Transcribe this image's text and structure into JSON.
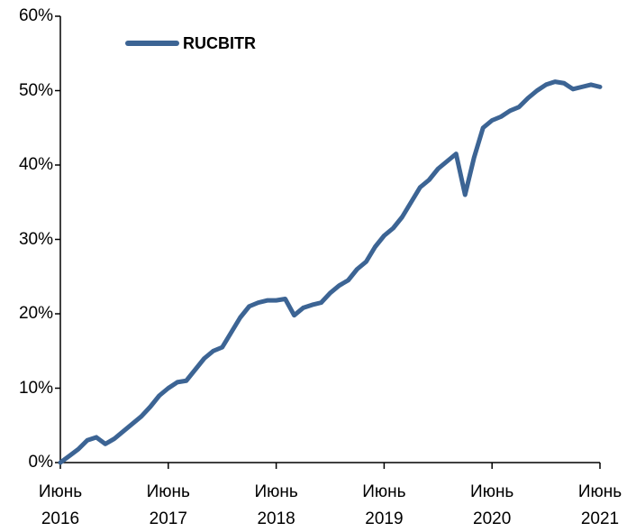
{
  "chart_data": {
    "type": "line",
    "x": [
      "2016-06",
      "2016-07",
      "2016-08",
      "2016-09",
      "2016-10",
      "2016-11",
      "2016-12",
      "2017-01",
      "2017-02",
      "2017-03",
      "2017-04",
      "2017-05",
      "2017-06",
      "2017-07",
      "2017-08",
      "2017-09",
      "2017-10",
      "2017-11",
      "2017-12",
      "2018-01",
      "2018-02",
      "2018-03",
      "2018-04",
      "2018-05",
      "2018-06",
      "2018-07",
      "2018-08",
      "2018-09",
      "2018-10",
      "2018-11",
      "2018-12",
      "2019-01",
      "2019-02",
      "2019-03",
      "2019-04",
      "2019-05",
      "2019-06",
      "2019-07",
      "2019-08",
      "2019-09",
      "2019-10",
      "2019-11",
      "2019-12",
      "2020-01",
      "2020-02",
      "2020-03",
      "2020-04",
      "2020-05",
      "2020-06",
      "2020-07",
      "2020-08",
      "2020-09",
      "2020-10",
      "2020-11",
      "2020-12",
      "2021-01",
      "2021-02",
      "2021-03",
      "2021-04",
      "2021-05",
      "2021-06"
    ],
    "series": [
      {
        "name": "RUCBITR",
        "color": "#3c6494",
        "values": [
          0,
          0.9,
          1.8,
          3.0,
          3.4,
          2.5,
          3.2,
          4.2,
          5.2,
          6.2,
          7.5,
          9.0,
          10.0,
          10.8,
          11.0,
          12.5,
          14.0,
          15.0,
          15.5,
          17.5,
          19.5,
          21.0,
          21.5,
          21.8,
          21.8,
          22.0,
          19.8,
          20.8,
          21.2,
          21.5,
          22.8,
          23.8,
          24.5,
          26.0,
          27.0,
          29.0,
          30.5,
          31.5,
          33.0,
          35.0,
          37.0,
          38.0,
          39.5,
          40.5,
          41.5,
          36.0,
          41.0,
          45.0,
          46.0,
          46.5,
          47.3,
          47.8,
          49.0,
          50.0,
          50.8,
          51.2,
          51.0,
          50.2,
          50.5,
          50.8,
          50.5
        ]
      }
    ],
    "xlim": [
      "2016-06",
      "2021-06"
    ],
    "xticks": [
      {
        "value": "2016-06",
        "label": "Июнь 2016"
      },
      {
        "value": "2017-06",
        "label": "Июнь 2017"
      },
      {
        "value": "2018-06",
        "label": "Июнь 2018"
      },
      {
        "value": "2019-06",
        "label": "Июнь 2019"
      },
      {
        "value": "2020-06",
        "label": "Июнь 2020"
      },
      {
        "value": "2021-06",
        "label": "Июнь 2021"
      }
    ],
    "ylim": [
      0,
      60
    ],
    "yticks": [
      {
        "value": 0,
        "label": "0%"
      },
      {
        "value": 10,
        "label": "10%"
      },
      {
        "value": 20,
        "label": "20%"
      },
      {
        "value": 30,
        "label": "30%"
      },
      {
        "value": 40,
        "label": "40%"
      },
      {
        "value": 50,
        "label": "50%"
      },
      {
        "value": 60,
        "label": "60%"
      }
    ],
    "legend": "top-left"
  }
}
